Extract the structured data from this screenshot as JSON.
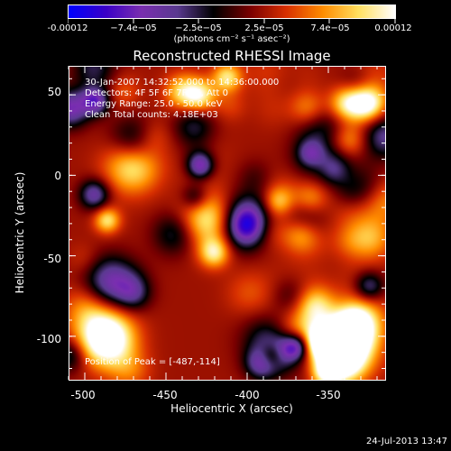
{
  "colorbar": {
    "labels": [
      "-0.00012",
      "−7.4e−05",
      "−2.5e−05",
      "2.5e−05",
      "7.4e−05",
      "0.00012"
    ],
    "units": "(photons cm⁻² s⁻¹ asec⁻²)",
    "colormap": [
      "#0000ff",
      "#3a00c8",
      "#7a2fb0",
      "#5a3a90",
      "#000000",
      "#7a0000",
      "#d83000",
      "#ff8c00",
      "#ffe060",
      "#ffffff"
    ]
  },
  "plot": {
    "title": "Reconstructed RHESSI Image",
    "time_range": "30-Jan-2007 14:32:52.000 to 14:36:00.000",
    "detectors": "Detectors: 4F 5F 6F 7F 8F, Att 0",
    "energy_range": "Energy Range: 25.0 - 50.0 keV",
    "clean_info": "Clean      Total counts: 4.18E+03",
    "peak": "Position of Peak = [-487,-114]",
    "xlabel": "Heliocentric X (arcsec)",
    "ylabel": "Heliocentric Y (arcsec)",
    "xticks": [
      "-500",
      "-450",
      "-400",
      "-350"
    ],
    "yticks": [
      "50",
      "0",
      "-50",
      "-100"
    ]
  },
  "chart_data": {
    "type": "heatmap",
    "title": "Reconstructed RHESSI Image",
    "xlabel": "Heliocentric X (arcsec)",
    "ylabel": "Heliocentric Y (arcsec)",
    "xlim": [
      -510,
      -315
    ],
    "ylim": [
      -127,
      68
    ],
    "zlim": [
      -0.00012,
      0.00012
    ],
    "peak": [
      -487,
      -114
    ]
  },
  "footer": {
    "datestamp": "24-Jul-2013 13:47"
  }
}
